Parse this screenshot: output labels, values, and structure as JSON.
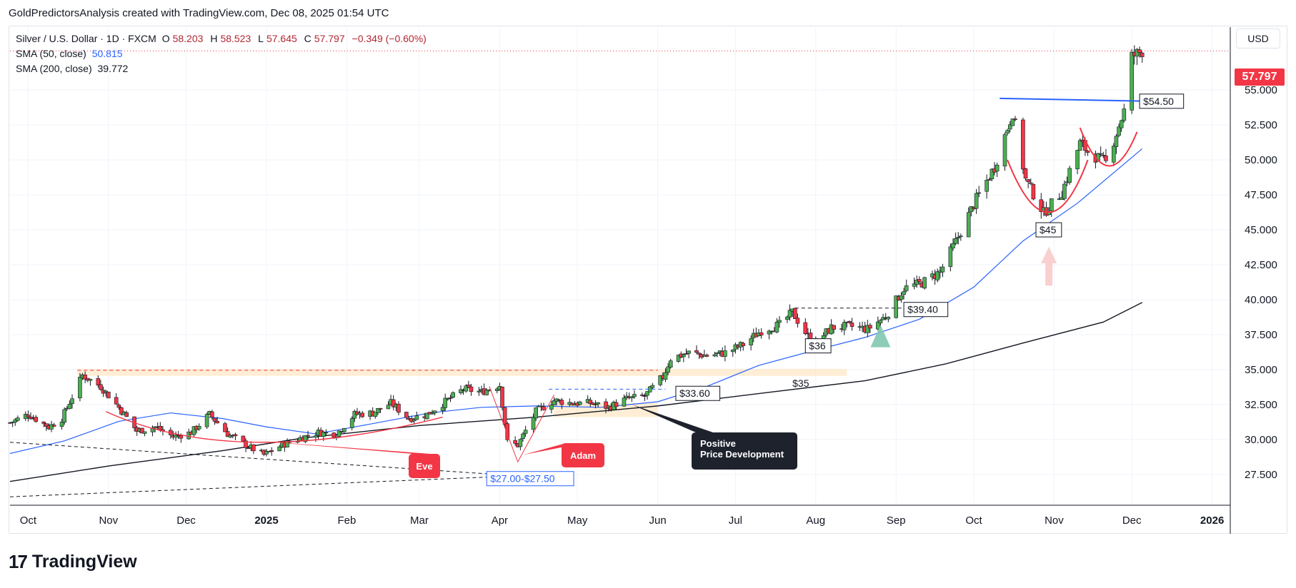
{
  "caption": "GoldPredictorsAnalysis created with TradingView.com, Dec 08, 2025 01:54 UTC",
  "legend": {
    "symbol": "Silver / U.S. Dollar · 1D · FXCM",
    "open_label": "O",
    "open": "58.203",
    "high_label": "H",
    "high": "58.523",
    "low_label": "L",
    "low": "57.645",
    "close_label": "C",
    "close": "57.797",
    "change": "−0.349 (−0.60%)",
    "sma50_label": "SMA (50, close)",
    "sma50_value": "50.815",
    "sma200_label": "SMA (200, close)",
    "sma200_value": "39.772"
  },
  "currency": "USD",
  "last_price": "57.797",
  "brand": {
    "name": "TradingView",
    "mark": "17"
  },
  "colors": {
    "up": "#4caf50",
    "down": "#f23645",
    "sma50": "#2962ff",
    "sma200": "#131722",
    "annotation_red": "#f23645",
    "annotation_blue": "#2962ff",
    "grid": "#f0f3fa"
  },
  "chart_data": {
    "type": "candlestick",
    "title": "Silver / U.S. Dollar · 1D · FXCM",
    "ylim": [
      25.4,
      59.5
    ],
    "x_range": [
      "2024-09-24",
      "2026-01-08"
    ],
    "y_ticks": [
      27.5,
      30.0,
      32.5,
      35.0,
      37.5,
      40.0,
      42.5,
      45.0,
      47.5,
      50.0,
      52.5,
      55.0
    ],
    "y_tick_labels": [
      "27.500",
      "30.000",
      "32.500",
      "35.000",
      "37.500",
      "40.000",
      "42.500",
      "45.000",
      "47.500",
      "50.000",
      "52.500",
      "55.000"
    ],
    "x_ticks": [
      {
        "date": "2024-10-01",
        "label": "Oct"
      },
      {
        "date": "2024-11-01",
        "label": "Nov"
      },
      {
        "date": "2024-12-01",
        "label": "Dec"
      },
      {
        "date": "2025-01-01",
        "label": "2025"
      },
      {
        "date": "2025-02-01",
        "label": "Feb"
      },
      {
        "date": "2025-03-01",
        "label": "Mar"
      },
      {
        "date": "2025-04-01",
        "label": "Apr"
      },
      {
        "date": "2025-05-01",
        "label": "May"
      },
      {
        "date": "2025-06-01",
        "label": "Jun"
      },
      {
        "date": "2025-07-01",
        "label": "Jul"
      },
      {
        "date": "2025-08-01",
        "label": "Aug"
      },
      {
        "date": "2025-09-01",
        "label": "Sep"
      },
      {
        "date": "2025-10-01",
        "label": "Oct"
      },
      {
        "date": "2025-11-01",
        "label": "Nov"
      },
      {
        "date": "2025-12-01",
        "label": "Dec"
      },
      {
        "date": "2026-01-01",
        "label": "2026"
      }
    ],
    "price_path": [
      [
        "2024-09-24",
        31.2
      ],
      [
        "2024-10-01",
        31.8
      ],
      [
        "2024-10-09",
        30.9
      ],
      [
        "2024-10-14",
        31.5
      ],
      [
        "2024-10-22",
        34.6
      ],
      [
        "2024-10-29",
        33.8
      ],
      [
        "2024-11-05",
        32.3
      ],
      [
        "2024-11-12",
        30.6
      ],
      [
        "2024-11-19",
        30.9
      ],
      [
        "2024-11-26",
        30.2
      ],
      [
        "2024-12-03",
        30.5
      ],
      [
        "2024-12-10",
        31.8
      ],
      [
        "2024-12-17",
        30.4
      ],
      [
        "2024-12-24",
        29.6
      ],
      [
        "2024-12-31",
        28.9
      ],
      [
        "2025-01-07",
        29.6
      ],
      [
        "2025-01-14",
        30.1
      ],
      [
        "2025-01-21",
        30.5
      ],
      [
        "2025-01-28",
        30.4
      ],
      [
        "2025-02-04",
        31.8
      ],
      [
        "2025-02-11",
        31.9
      ],
      [
        "2025-02-18",
        32.6
      ],
      [
        "2025-02-25",
        31.5
      ],
      [
        "2025-03-04",
        31.8
      ],
      [
        "2025-03-11",
        32.7
      ],
      [
        "2025-03-18",
        33.6
      ],
      [
        "2025-03-25",
        33.4
      ],
      [
        "2025-04-01",
        33.9
      ],
      [
        "2025-04-04",
        29.8
      ],
      [
        "2025-04-08",
        29.6
      ],
      [
        "2025-04-15",
        32.0
      ],
      [
        "2025-04-22",
        32.8
      ],
      [
        "2025-04-29",
        32.6
      ],
      [
        "2025-05-06",
        32.6
      ],
      [
        "2025-05-13",
        32.3
      ],
      [
        "2025-05-20",
        32.9
      ],
      [
        "2025-05-27",
        33.1
      ],
      [
        "2025-06-03",
        34.5
      ],
      [
        "2025-06-06",
        35.8
      ],
      [
        "2025-06-13",
        36.2
      ],
      [
        "2025-06-20",
        36.0
      ],
      [
        "2025-06-27",
        36.2
      ],
      [
        "2025-07-04",
        36.8
      ],
      [
        "2025-07-11",
        37.8
      ],
      [
        "2025-07-18",
        38.2
      ],
      [
        "2025-07-23",
        39.1
      ],
      [
        "2025-07-31",
        36.8
      ],
      [
        "2025-08-07",
        38.0
      ],
      [
        "2025-08-14",
        38.1
      ],
      [
        "2025-08-21",
        37.9
      ],
      [
        "2025-08-28",
        38.8
      ],
      [
        "2025-09-04",
        40.8
      ],
      [
        "2025-09-11",
        41.2
      ],
      [
        "2025-09-18",
        42.0
      ],
      [
        "2025-09-25",
        44.5
      ],
      [
        "2025-10-02",
        47.2
      ],
      [
        "2025-10-09",
        49.5
      ],
      [
        "2025-10-16",
        53.4
      ],
      [
        "2025-10-21",
        48.6
      ],
      [
        "2025-10-28",
        46.2
      ],
      [
        "2025-11-04",
        47.7
      ],
      [
        "2025-11-11",
        51.2
      ],
      [
        "2025-11-14",
        50.6
      ],
      [
        "2025-11-21",
        49.8
      ],
      [
        "2025-11-28",
        53.5
      ],
      [
        "2025-12-01",
        57.4
      ],
      [
        "2025-12-05",
        57.8
      ]
    ],
    "sma50": [
      [
        "2024-09-24",
        29.0
      ],
      [
        "2024-10-15",
        29.9
      ],
      [
        "2024-11-05",
        31.3
      ],
      [
        "2024-11-25",
        31.9
      ],
      [
        "2024-12-15",
        31.5
      ],
      [
        "2025-01-01",
        30.9
      ],
      [
        "2025-01-20",
        30.4
      ],
      [
        "2025-02-10",
        31.1
      ],
      [
        "2025-03-05",
        31.9
      ],
      [
        "2025-03-25",
        32.3
      ],
      [
        "2025-04-15",
        32.4
      ],
      [
        "2025-05-10",
        32.3
      ],
      [
        "2025-06-01",
        32.7
      ],
      [
        "2025-06-20",
        33.8
      ],
      [
        "2025-07-10",
        35.3
      ],
      [
        "2025-08-01",
        36.4
      ],
      [
        "2025-08-20",
        37.3
      ],
      [
        "2025-09-10",
        38.6
      ],
      [
        "2025-10-01",
        40.9
      ],
      [
        "2025-10-20",
        44.2
      ],
      [
        "2025-11-10",
        46.9
      ],
      [
        "2025-12-05",
        50.8
      ]
    ],
    "sma200": [
      [
        "2024-09-24",
        27.0
      ],
      [
        "2024-11-01",
        28.1
      ],
      [
        "2024-12-15",
        29.2
      ],
      [
        "2025-01-15",
        30.1
      ],
      [
        "2025-03-01",
        31.0
      ],
      [
        "2025-04-15",
        31.6
      ],
      [
        "2025-06-01",
        32.4
      ],
      [
        "2025-07-15",
        33.4
      ],
      [
        "2025-08-20",
        34.2
      ],
      [
        "2025-09-20",
        35.4
      ],
      [
        "2025-10-20",
        36.9
      ],
      [
        "2025-11-20",
        38.4
      ],
      [
        "2025-12-05",
        39.8
      ]
    ],
    "annotations": {
      "eve_label": "Eve",
      "adam_label": "Adam",
      "support_zone_label": "$27.00-$27.50",
      "breakout_label": "$33.60",
      "level_35_label": "$35",
      "level_36_label": "$36",
      "level_3940_label": "$39.40",
      "level_45_label": "$45",
      "neckline_label": "$54.50",
      "callout_line1": "Positive",
      "callout_line2": "Price Development"
    }
  }
}
